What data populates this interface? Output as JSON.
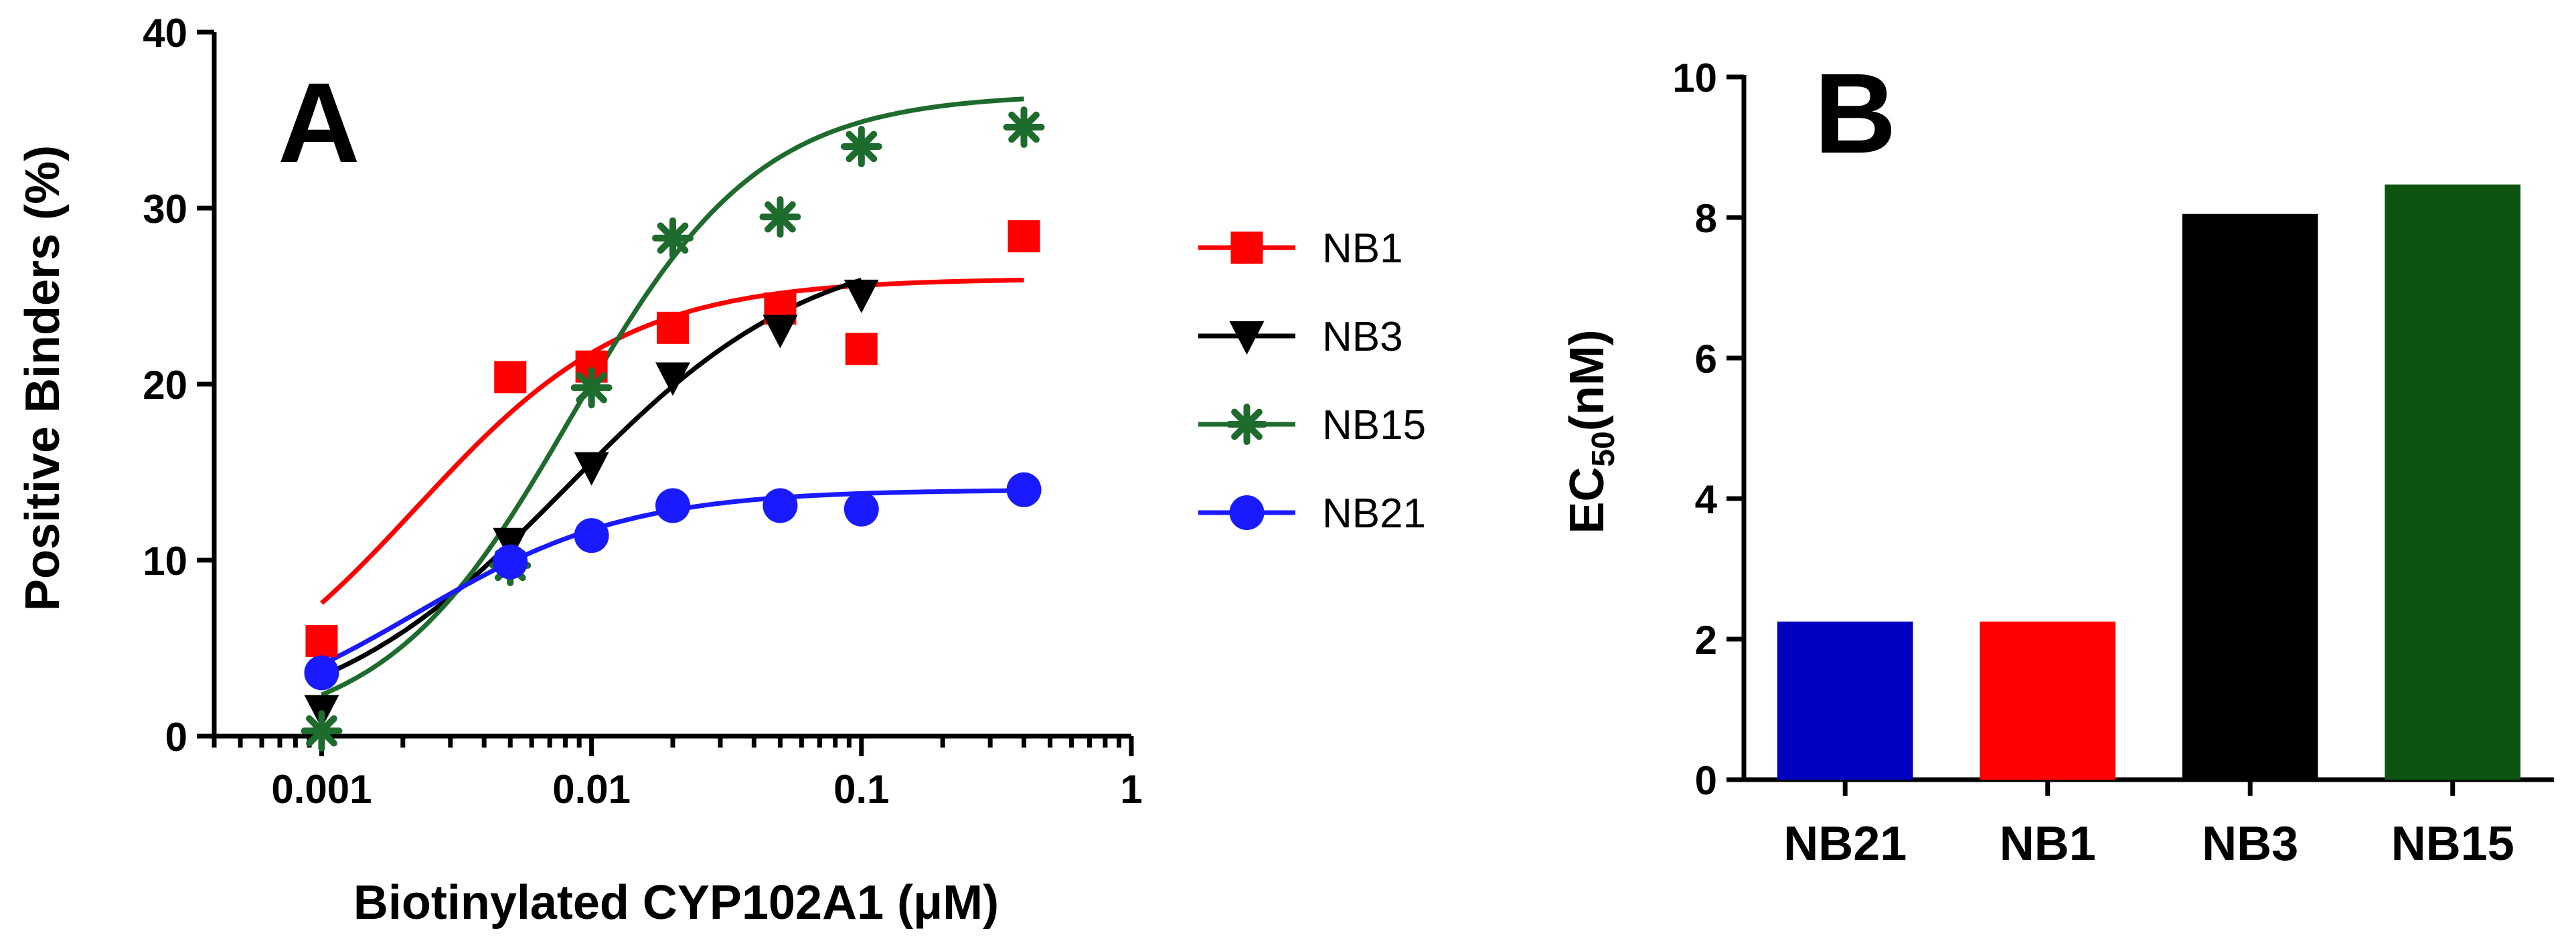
{
  "chart_data": [
    {
      "panel_label": "A",
      "type": "scatter",
      "xscale": "log",
      "xlabel": "Biotinylated CYP102A1 (μM)",
      "ylabel": "Positive Binders (%)",
      "xlim": [
        0.0004,
        1
      ],
      "ylim": [
        0,
        40
      ],
      "x_tick_values": [
        0.001,
        0.01,
        0.1,
        1
      ],
      "x_tick_labels": [
        "0.001",
        "0.01",
        "0.1",
        "1"
      ],
      "y_tick_values": [
        0,
        10,
        20,
        30,
        40
      ],
      "y_tick_labels": [
        "0",
        "10",
        "20",
        "30",
        "40"
      ],
      "legend_position": "right",
      "series": [
        {
          "name": "NB1",
          "color": "#ff0000",
          "marker": "square",
          "x": [
            0.001,
            0.005,
            0.01,
            0.02,
            0.05,
            0.1,
            0.4
          ],
          "y": [
            5.4,
            20.4,
            21.0,
            23.2,
            24.3,
            22.0,
            28.4
          ],
          "fit": {
            "bottom": 0,
            "top": 26.0,
            "ec50": 0.00225,
            "hill": 1.1
          }
        },
        {
          "name": "NB3",
          "color": "#000000",
          "marker": "triangle-down",
          "x": [
            0.001,
            0.005,
            0.01,
            0.02,
            0.05,
            0.1
          ],
          "y": [
            1.5,
            11.0,
            15.3,
            20.4,
            23.1,
            25.1
          ],
          "fit": {
            "bottom": 0,
            "top": 28.3,
            "ec50": 0.0081,
            "hill": 0.95
          }
        },
        {
          "name": "NB15",
          "color": "#1e6b2e",
          "marker": "star",
          "x": [
            0.001,
            0.005,
            0.01,
            0.02,
            0.05,
            0.1,
            0.4
          ],
          "y": [
            0.3,
            9.7,
            19.8,
            28.3,
            29.5,
            33.5,
            34.6
          ],
          "fit": {
            "bottom": 0,
            "top": 36.5,
            "ec50": 0.0085,
            "hill": 1.25
          }
        },
        {
          "name": "NB21",
          "color": "#1a1aff",
          "marker": "circle",
          "x": [
            0.001,
            0.005,
            0.01,
            0.02,
            0.05,
            0.1,
            0.4
          ],
          "y": [
            3.6,
            9.9,
            11.4,
            13.1,
            13.1,
            12.9,
            14.0
          ],
          "fit": {
            "bottom": 0,
            "top": 14.0,
            "ec50": 0.00225,
            "hill": 1.1
          }
        }
      ]
    },
    {
      "panel_label": "B",
      "type": "bar",
      "xlabel": "",
      "ylabel": "EC₅₀(nM)",
      "ylabel_base": "EC",
      "ylabel_sub": "50",
      "ylabel_unit": "(nM)",
      "ylim": [
        0,
        10
      ],
      "y_tick_values": [
        0,
        2,
        4,
        6,
        8,
        10
      ],
      "y_tick_labels": [
        "0",
        "2",
        "4",
        "6",
        "8",
        "10"
      ],
      "categories": [
        "NB21",
        "NB1",
        "NB3",
        "NB15"
      ],
      "values": [
        2.25,
        2.25,
        8.05,
        8.47
      ],
      "colors": [
        "#0000c0",
        "#ff0000",
        "#000000",
        "#0d5410"
      ]
    }
  ]
}
